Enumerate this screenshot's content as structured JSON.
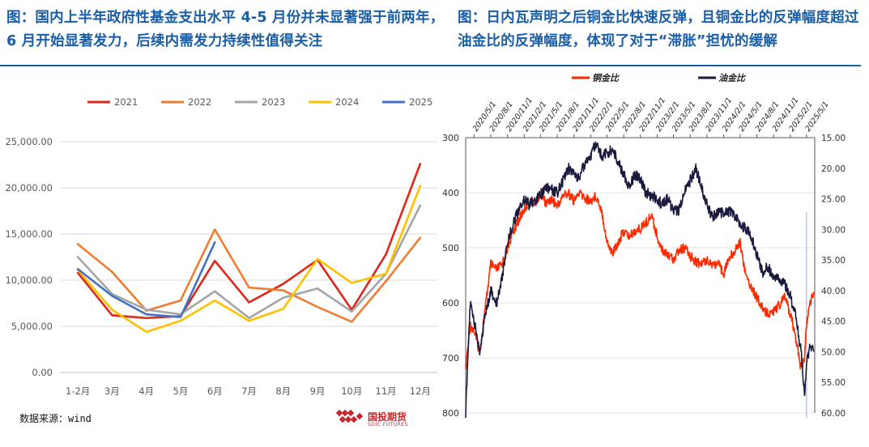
{
  "titles": {
    "left": "图：国内上半年政府性基金支出水平 4-5 月份并未显著强于前两年，6 月开始显著发力，后续内需发力持续性值得关注",
    "right": "图：日内瓦声明之后铜金比快速反弹，且铜金比的反弹幅度超过油金比的反弹幅度，体现了对于“滞胀”担忧的缓解"
  },
  "source": "数据来源：wind",
  "logo": {
    "text": "国投期货",
    "sub": "SDIC FUTURES"
  },
  "chart_data": [
    {
      "type": "line",
      "categories": [
        "1-2月",
        "3月",
        "4月",
        "5月",
        "6月",
        "7月",
        "8月",
        "9月",
        "10月",
        "11月",
        "12月"
      ],
      "ylim": [
        0,
        25000
      ],
      "yticks": [
        "0.00",
        "5,000.00",
        "10,000.00",
        "15,000.00",
        "20,000.00",
        "25,000.00"
      ],
      "ytick_values": [
        0,
        5000,
        10000,
        15000,
        20000,
        25000
      ],
      "grid": true,
      "legend": "top",
      "series": [
        {
          "name": "2021",
          "color": "#e0261b",
          "values": [
            10800,
            6200,
            5900,
            6100,
            12100,
            7600,
            9600,
            12200,
            6800,
            12800,
            22600
          ]
        },
        {
          "name": "2022",
          "color": "#ef7d31",
          "values": [
            13900,
            10900,
            6700,
            7800,
            15500,
            9200,
            8900,
            7100,
            5500,
            9900,
            14600
          ]
        },
        {
          "name": "2023",
          "color": "#a5a5a5",
          "values": [
            12500,
            8500,
            6800,
            6300,
            8800,
            5900,
            8100,
            9100,
            6600,
            10700,
            18100
          ]
        },
        {
          "name": "2024",
          "color": "#ffc000",
          "values": [
            11100,
            6800,
            4400,
            5600,
            7800,
            5600,
            6900,
            12300,
            9700,
            10700,
            20200
          ]
        },
        {
          "name": "2025",
          "color": "#4472c4",
          "values": [
            11200,
            8300,
            6300,
            6000,
            14100,
            null,
            null,
            null,
            null,
            null,
            null
          ]
        }
      ]
    },
    {
      "type": "line",
      "x_ticks": [
        "2020/5/1",
        "2020/8/1",
        "2020/11/1",
        "2021/2/1",
        "2021/5/1",
        "2021/8/1",
        "2021/11/1",
        "2022/2/1",
        "2022/5/1",
        "2022/8/1",
        "2022/11/1",
        "2023/2/1",
        "2023/5/1",
        "2023/8/1",
        "2023/11/1",
        "2024/2/1",
        "2024/5/1",
        "2024/8/1",
        "2024/11/1",
        "2025/2/1",
        "2025/5/1"
      ],
      "xlim": [
        "2020/3/16",
        "2025/6/15"
      ],
      "left_axis": {
        "ylim": [
          300,
          800
        ],
        "inverted": true,
        "ticks": [
          "300",
          "400",
          "500",
          "600",
          "700",
          "800"
        ],
        "tick_values": [
          300,
          400,
          500,
          600,
          700,
          800
        ]
      },
      "right_axis": {
        "ylim": [
          15,
          60
        ],
        "inverted": true,
        "ticks": [
          "15.00",
          "20.00",
          "25.00",
          "30.00",
          "35.00",
          "40.00",
          "45.00",
          "50.00",
          "55.00",
          "60.00"
        ],
        "tick_values": [
          15,
          20,
          25,
          30,
          35,
          40,
          45,
          50,
          55,
          60
        ]
      },
      "legend": "top",
      "marker_line": "2025/5/1",
      "series": [
        {
          "name": "铜金比",
          "color": "#ff2a00",
          "axis": "left",
          "points": [
            [
              "2020/3/16",
              720
            ],
            [
              "2020/4/10",
              640
            ],
            [
              "2020/5/1",
              650
            ],
            [
              "2020/6/1",
              690
            ],
            [
              "2020/7/1",
              610
            ],
            [
              "2020/8/1",
              530
            ],
            [
              "2020/9/1",
              540
            ],
            [
              "2020/10/1",
              530
            ],
            [
              "2020/11/1",
              500
            ],
            [
              "2020/12/1",
              470
            ],
            [
              "2021/1/1",
              450
            ],
            [
              "2021/2/1",
              430
            ],
            [
              "2021/3/1",
              415
            ],
            [
              "2021/4/1",
              420
            ],
            [
              "2021/5/1",
              400
            ],
            [
              "2021/6/1",
              420
            ],
            [
              "2021/7/1",
              410
            ],
            [
              "2021/8/1",
              425
            ],
            [
              "2021/9/1",
              405
            ],
            [
              "2021/10/1",
              400
            ],
            [
              "2021/11/1",
              415
            ],
            [
              "2021/12/1",
              400
            ],
            [
              "2022/1/1",
              410
            ],
            [
              "2022/2/1",
              415
            ],
            [
              "2022/3/1",
              405
            ],
            [
              "2022/4/1",
              430
            ],
            [
              "2022/5/1",
              490
            ],
            [
              "2022/6/1",
              510
            ],
            [
              "2022/7/1",
              490
            ],
            [
              "2022/8/1",
              470
            ],
            [
              "2022/9/1",
              480
            ],
            [
              "2022/10/1",
              470
            ],
            [
              "2022/11/1",
              465
            ],
            [
              "2022/12/1",
              455
            ],
            [
              "2023/1/1",
              440
            ],
            [
              "2023/2/1",
              480
            ],
            [
              "2023/3/1",
              505
            ],
            [
              "2023/4/1",
              510
            ],
            [
              "2023/5/1",
              520
            ],
            [
              "2023/6/1",
              505
            ],
            [
              "2023/7/1",
              500
            ],
            [
              "2023/8/1",
              515
            ],
            [
              "2023/9/1",
              525
            ],
            [
              "2023/10/1",
              530
            ],
            [
              "2023/11/1",
              520
            ],
            [
              "2023/12/1",
              530
            ],
            [
              "2024/1/1",
              530
            ],
            [
              "2024/2/1",
              545
            ],
            [
              "2024/3/1",
              520
            ],
            [
              "2024/4/1",
              505
            ],
            [
              "2024/5/1",
              490
            ],
            [
              "2024/6/1",
              550
            ],
            [
              "2024/7/1",
              570
            ],
            [
              "2024/8/1",
              590
            ],
            [
              "2024/9/1",
              610
            ],
            [
              "2024/10/1",
              620
            ],
            [
              "2024/11/1",
              615
            ],
            [
              "2024/12/1",
              605
            ],
            [
              "2025/1/1",
              590
            ],
            [
              "2025/2/1",
              620
            ],
            [
              "2025/3/1",
              660
            ],
            [
              "2025/4/1",
              720
            ],
            [
              "2025/4/20",
              700
            ],
            [
              "2025/5/1",
              640
            ],
            [
              "2025/5/20",
              600
            ],
            [
              "2025/6/10",
              580
            ]
          ]
        },
        {
          "name": "油金比",
          "color": "#1a1a3e",
          "axis": "right",
          "points": [
            [
              "2020/3/16",
              60
            ],
            [
              "2020/4/10",
              42
            ],
            [
              "2020/5/1",
              45
            ],
            [
              "2020/6/1",
              50
            ],
            [
              "2020/7/1",
              44
            ],
            [
              "2020/8/1",
              40
            ],
            [
              "2020/9/1",
              42
            ],
            [
              "2020/10/1",
              38
            ],
            [
              "2020/11/1",
              32
            ],
            [
              "2020/12/1",
              29
            ],
            [
              "2021/1/1",
              27
            ],
            [
              "2021/2/1",
              25
            ],
            [
              "2021/3/1",
              26
            ],
            [
              "2021/4/1",
              25
            ],
            [
              "2021/5/1",
              24.5
            ],
            [
              "2021/6/1",
              23
            ],
            [
              "2021/7/1",
              23.5
            ],
            [
              "2021/8/1",
              24
            ],
            [
              "2021/9/1",
              22
            ],
            [
              "2021/10/1",
              20
            ],
            [
              "2021/11/1",
              21
            ],
            [
              "2021/12/1",
              21.5
            ],
            [
              "2022/1/1",
              19
            ],
            [
              "2022/2/1",
              18
            ],
            [
              "2022/3/1",
              16
            ],
            [
              "2022/4/1",
              18
            ],
            [
              "2022/5/1",
              17.5
            ],
            [
              "2022/6/1",
              17
            ],
            [
              "2022/7/1",
              19
            ],
            [
              "2022/8/1",
              21
            ],
            [
              "2022/9/1",
              23
            ],
            [
              "2022/10/1",
              21
            ],
            [
              "2022/11/1",
              22
            ],
            [
              "2022/12/1",
              24
            ],
            [
              "2023/1/1",
              24.5
            ],
            [
              "2023/2/1",
              25
            ],
            [
              "2023/3/1",
              26
            ],
            [
              "2023/4/1",
              25
            ],
            [
              "2023/5/1",
              27
            ],
            [
              "2023/6/1",
              27
            ],
            [
              "2023/7/1",
              24
            ],
            [
              "2023/8/1",
              22
            ],
            [
              "2023/9/1",
              20
            ],
            [
              "2023/10/1",
              23
            ],
            [
              "2023/11/1",
              26
            ],
            [
              "2023/12/1",
              28
            ],
            [
              "2024/1/1",
              27
            ],
            [
              "2024/2/1",
              27.5
            ],
            [
              "2024/3/1",
              27
            ],
            [
              "2024/4/1",
              28
            ],
            [
              "2024/5/1",
              29
            ],
            [
              "2024/6/1",
              30
            ],
            [
              "2024/7/1",
              31
            ],
            [
              "2024/8/1",
              34
            ],
            [
              "2024/9/1",
              37
            ],
            [
              "2024/10/1",
              36
            ],
            [
              "2024/11/1",
              38
            ],
            [
              "2024/12/1",
              38
            ],
            [
              "2025/1/1",
              39
            ],
            [
              "2025/2/1",
              41
            ],
            [
              "2025/3/1",
              44
            ],
            [
              "2025/4/1",
              50
            ],
            [
              "2025/4/20",
              57
            ],
            [
              "2025/5/1",
              52
            ],
            [
              "2025/5/20",
              49
            ],
            [
              "2025/6/10",
              50
            ]
          ]
        }
      ]
    }
  ]
}
